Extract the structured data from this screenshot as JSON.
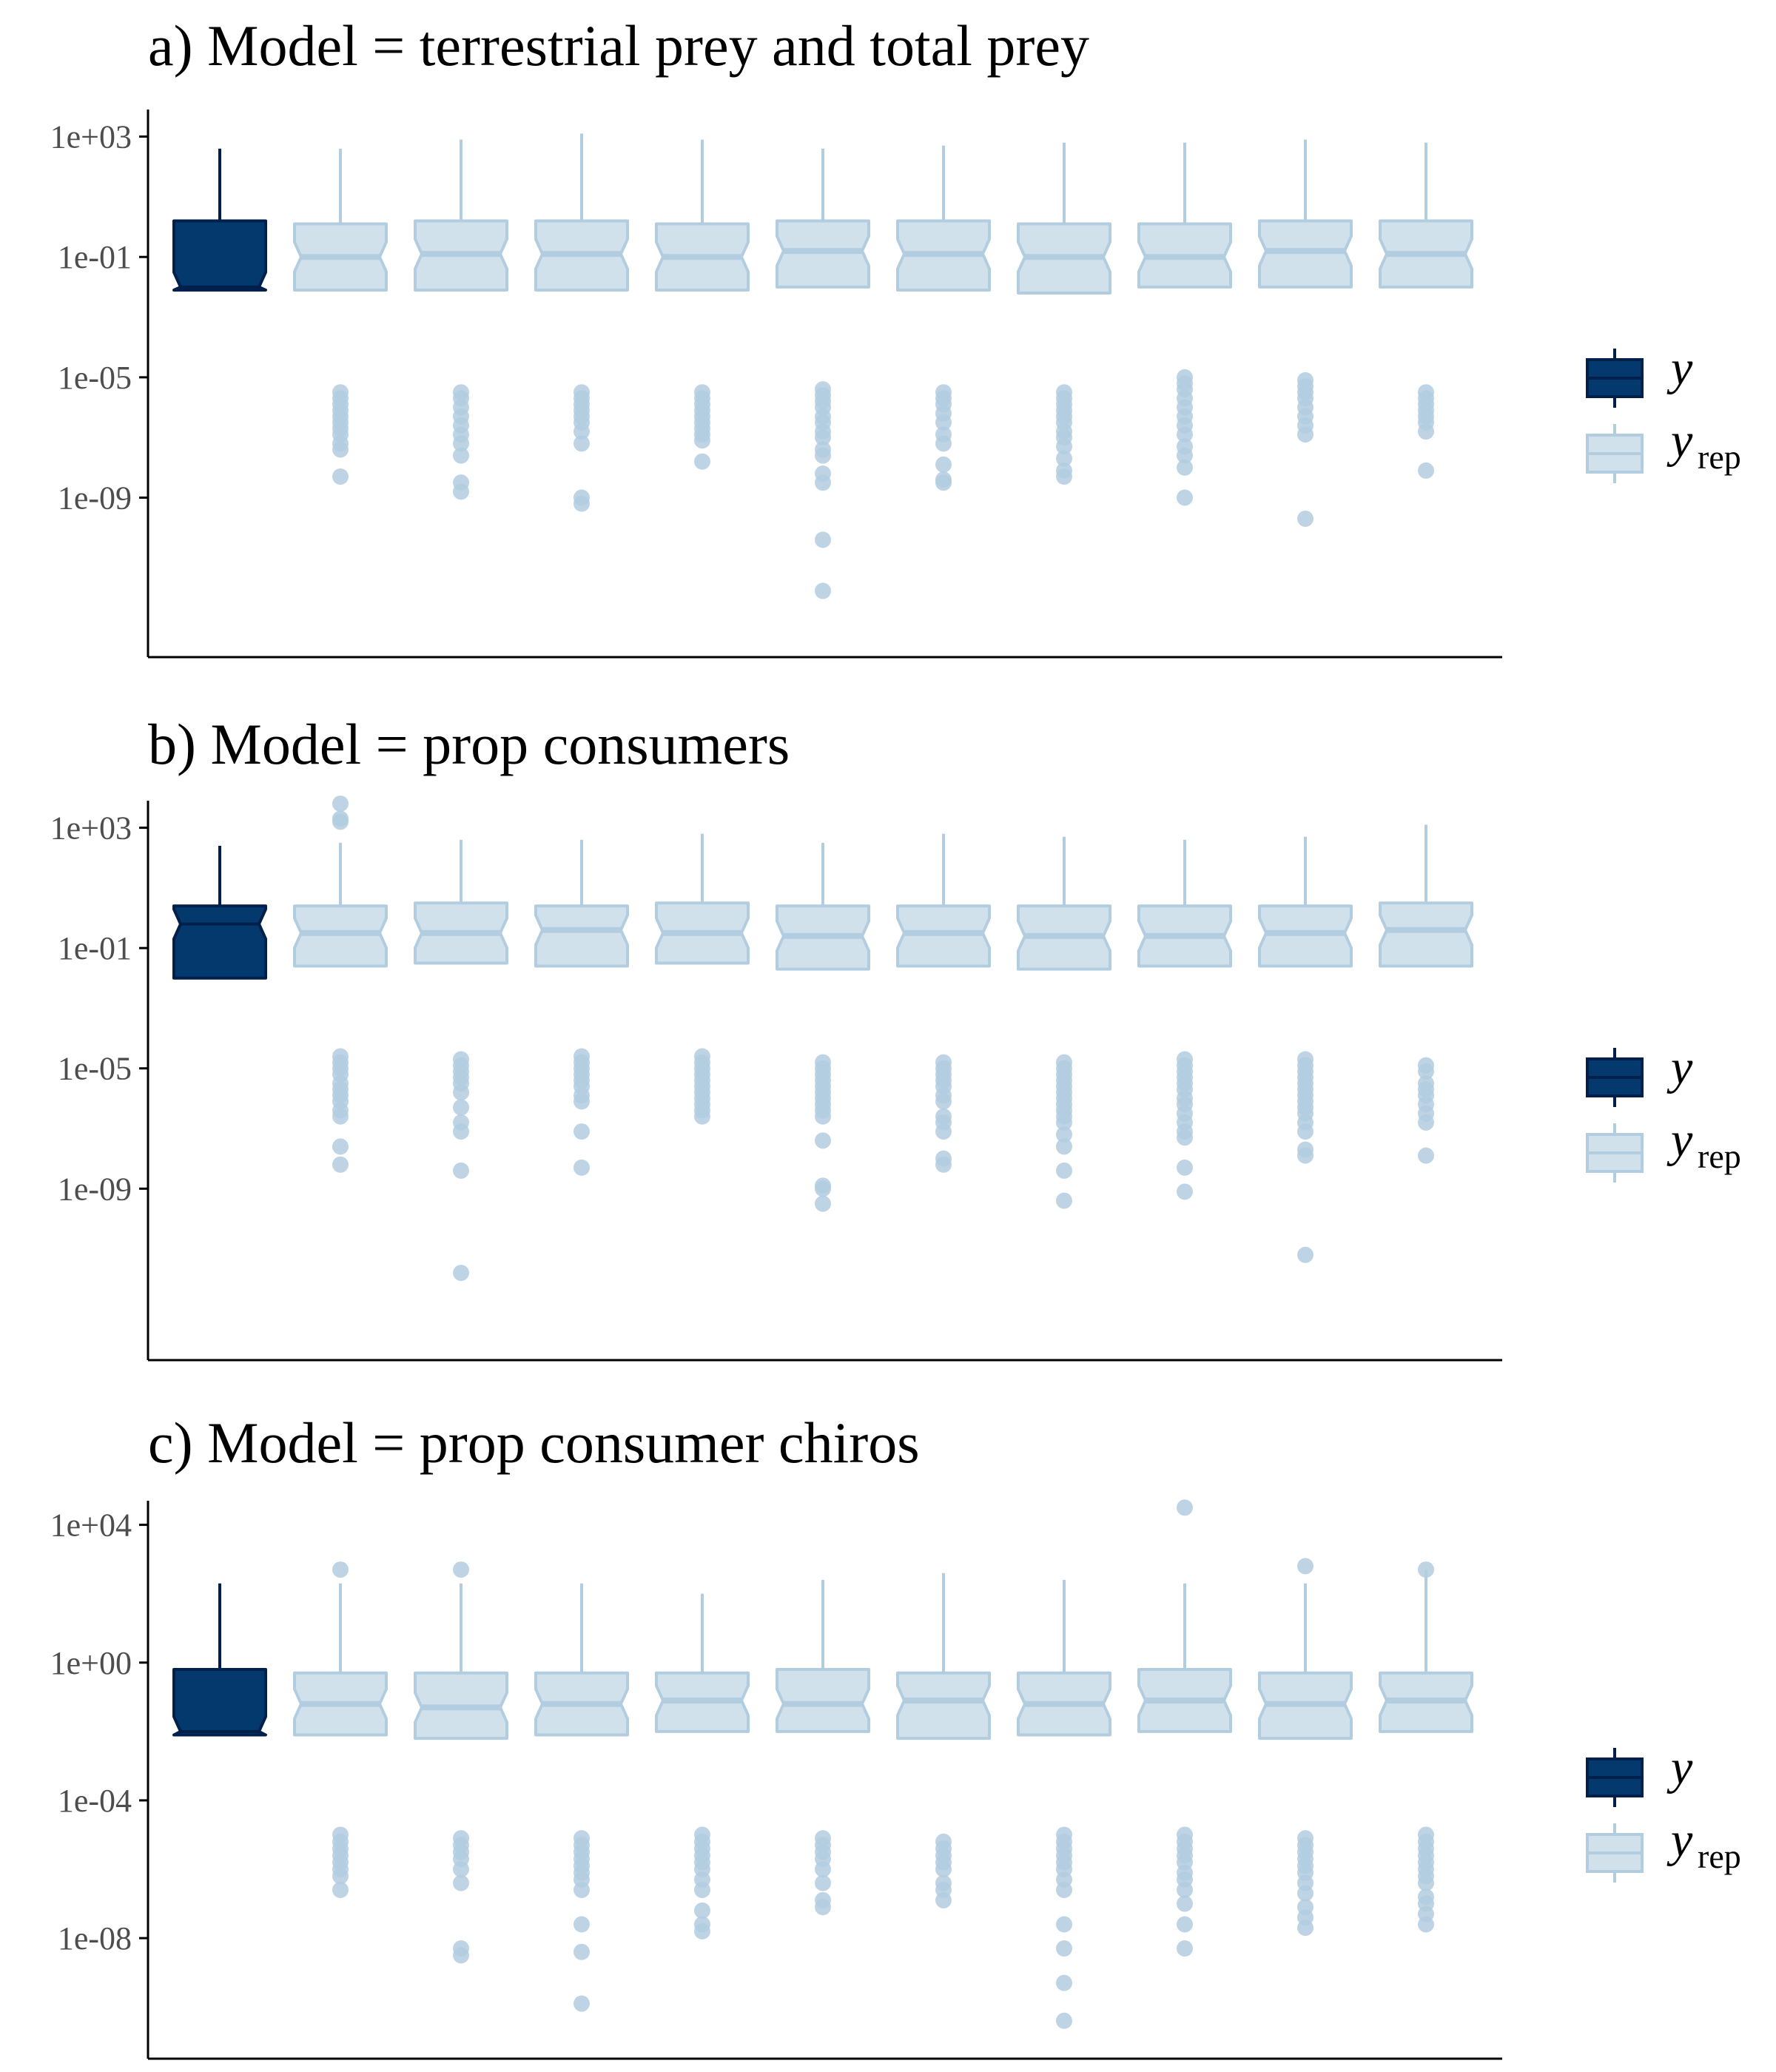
{
  "colors": {
    "y": "#03396c",
    "y_edge": "#011f4b",
    "yrep": "#d1e1ec",
    "yrep_edge": "#b3cde0",
    "axis": "#000000",
    "tick_text": "#4d4d4d"
  },
  "legend": {
    "y_label": "y",
    "yrep_label": "y",
    "yrep_subscript": "rep"
  },
  "chart_data": [
    {
      "type": "boxplot",
      "title": "a) Model = terrestrial prey and total prey",
      "y_scale": "log10",
      "ylim_log10": [
        -14.3,
        3.9
      ],
      "yticks": [
        {
          "label": "1e+03",
          "log10": 3
        },
        {
          "label": "1e-01",
          "log10": -1
        },
        {
          "label": "1e-05",
          "log10": -5
        },
        {
          "label": "1e-09",
          "log10": -9
        }
      ],
      "xlabel": "",
      "ylabel": "",
      "legend_position": "right",
      "boxes": [
        {
          "series": "y",
          "log10": {
            "whisker_low": -2.1,
            "q1": -2.1,
            "median": -2.0,
            "q3": 0.2,
            "whisker_high": 2.6
          },
          "outliers_log10": []
        },
        {
          "series": "yrep",
          "log10": {
            "whisker_low": -2.1,
            "q1": -2.1,
            "median": -1.0,
            "q3": 0.1,
            "whisker_high": 2.6
          },
          "outliers_log10": [
            -5.5,
            -5.7,
            -5.9,
            -6.1,
            -6.3,
            -6.5,
            -6.7,
            -6.9,
            -7.2,
            -7.4,
            -8.3
          ]
        },
        {
          "series": "yrep",
          "log10": {
            "whisker_low": -2.1,
            "q1": -2.1,
            "median": -0.9,
            "q3": 0.2,
            "whisker_high": 2.9
          },
          "outliers_log10": [
            -5.5,
            -5.7,
            -6.0,
            -6.3,
            -6.6,
            -6.9,
            -7.2,
            -7.6,
            -8.5,
            -8.8
          ]
        },
        {
          "series": "yrep",
          "log10": {
            "whisker_low": -2.1,
            "q1": -2.1,
            "median": -0.9,
            "q3": 0.2,
            "whisker_high": 3.1
          },
          "outliers_log10": [
            -5.5,
            -5.7,
            -5.9,
            -6.1,
            -6.3,
            -6.5,
            -6.8,
            -7.2,
            -9.0,
            -9.2
          ]
        },
        {
          "series": "yrep",
          "log10": {
            "whisker_low": -2.1,
            "q1": -2.1,
            "median": -1.0,
            "q3": 0.1,
            "whisker_high": 2.9
          },
          "outliers_log10": [
            -5.5,
            -5.7,
            -5.9,
            -6.1,
            -6.3,
            -6.5,
            -6.7,
            -6.9,
            -7.1,
            -7.8
          ]
        },
        {
          "series": "yrep",
          "log10": {
            "whisker_low": -2.0,
            "q1": -2.0,
            "median": -0.8,
            "q3": 0.2,
            "whisker_high": 2.6
          },
          "outliers_log10": [
            -5.4,
            -5.6,
            -5.8,
            -6.0,
            -6.3,
            -6.5,
            -6.8,
            -7.0,
            -7.4,
            -7.6,
            -8.2,
            -8.5,
            -10.4,
            -12.1
          ]
        },
        {
          "series": "yrep",
          "log10": {
            "whisker_low": -2.1,
            "q1": -2.1,
            "median": -0.9,
            "q3": 0.2,
            "whisker_high": 2.7
          },
          "outliers_log10": [
            -5.5,
            -5.7,
            -5.9,
            -6.2,
            -6.5,
            -6.9,
            -7.2,
            -7.9,
            -8.4,
            -8.5
          ]
        },
        {
          "series": "yrep",
          "log10": {
            "whisker_low": -2.2,
            "q1": -2.2,
            "median": -1.0,
            "q3": 0.1,
            "whisker_high": 2.8
          },
          "outliers_log10": [
            -5.5,
            -5.7,
            -5.9,
            -6.1,
            -6.3,
            -6.5,
            -6.8,
            -7.0,
            -7.3,
            -7.7,
            -8.1,
            -8.3
          ]
        },
        {
          "series": "yrep",
          "log10": {
            "whisker_low": -2.0,
            "q1": -2.0,
            "median": -1.0,
            "q3": 0.1,
            "whisker_high": 2.8
          },
          "outliers_log10": [
            -5.0,
            -5.2,
            -5.4,
            -5.7,
            -6.0,
            -6.3,
            -6.6,
            -6.9,
            -7.3,
            -7.6,
            -8.0,
            -9.0
          ]
        },
        {
          "series": "yrep",
          "log10": {
            "whisker_low": -2.0,
            "q1": -2.0,
            "median": -0.8,
            "q3": 0.2,
            "whisker_high": 2.9
          },
          "outliers_log10": [
            -5.1,
            -5.3,
            -5.5,
            -5.7,
            -6.0,
            -6.3,
            -6.6,
            -6.9,
            -9.7
          ]
        },
        {
          "series": "yrep",
          "log10": {
            "whisker_low": -2.0,
            "q1": -2.0,
            "median": -0.9,
            "q3": 0.2,
            "whisker_high": 2.8
          },
          "outliers_log10": [
            -5.5,
            -5.7,
            -5.9,
            -6.1,
            -6.3,
            -6.5,
            -6.8,
            -8.1
          ]
        }
      ]
    },
    {
      "type": "boxplot",
      "title": "b) Model = prop consumers",
      "y_scale": "log10",
      "ylim_log10": [
        -14.7,
        3.9
      ],
      "yticks": [
        {
          "label": "1e+03",
          "log10": 3
        },
        {
          "label": "1e-01",
          "log10": -1
        },
        {
          "label": "1e-05",
          "log10": -5
        },
        {
          "label": "1e-09",
          "log10": -9
        }
      ],
      "xlabel": "",
      "ylabel": "",
      "legend_position": "right",
      "boxes": [
        {
          "series": "y",
          "log10": {
            "whisker_low": -2.0,
            "q1": -2.0,
            "median": -0.2,
            "q3": 0.4,
            "whisker_high": 2.4
          },
          "outliers_log10": []
        },
        {
          "series": "yrep",
          "log10": {
            "whisker_low": -1.6,
            "q1": -1.6,
            "median": -0.5,
            "q3": 0.4,
            "whisker_high": 2.5
          },
          "outliers_log10": [
            3.8,
            3.3,
            3.2,
            -4.6,
            -4.8,
            -5.0,
            -5.2,
            -5.5,
            -5.7,
            -5.9,
            -6.1,
            -6.4,
            -6.6,
            -7.6,
            -8.2
          ]
        },
        {
          "series": "yrep",
          "log10": {
            "whisker_low": -1.5,
            "q1": -1.5,
            "median": -0.5,
            "q3": 0.5,
            "whisker_high": 2.6
          },
          "outliers_log10": [
            -4.7,
            -4.9,
            -5.1,
            -5.3,
            -5.5,
            -5.8,
            -6.3,
            -6.8,
            -7.1,
            -8.4,
            -11.8
          ]
        },
        {
          "series": "yrep",
          "log10": {
            "whisker_low": -1.6,
            "q1": -1.6,
            "median": -0.4,
            "q3": 0.4,
            "whisker_high": 2.6
          },
          "outliers_log10": [
            -4.6,
            -4.8,
            -5.0,
            -5.2,
            -5.4,
            -5.6,
            -5.9,
            -6.1,
            -7.1,
            -8.3
          ]
        },
        {
          "series": "yrep",
          "log10": {
            "whisker_low": -1.5,
            "q1": -1.5,
            "median": -0.5,
            "q3": 0.5,
            "whisker_high": 2.8
          },
          "outliers_log10": [
            -4.6,
            -4.8,
            -5.0,
            -5.2,
            -5.4,
            -5.6,
            -5.8,
            -6.0,
            -6.2,
            -6.4,
            -6.6
          ]
        },
        {
          "series": "yrep",
          "log10": {
            "whisker_low": -1.7,
            "q1": -1.7,
            "median": -0.6,
            "q3": 0.4,
            "whisker_high": 2.5
          },
          "outliers_log10": [
            -4.8,
            -5.0,
            -5.2,
            -5.4,
            -5.6,
            -5.8,
            -6.0,
            -6.2,
            -6.4,
            -6.6,
            -7.4,
            -8.9,
            -9.0,
            -9.5
          ]
        },
        {
          "series": "yrep",
          "log10": {
            "whisker_low": -1.6,
            "q1": -1.6,
            "median": -0.5,
            "q3": 0.4,
            "whisker_high": 2.8
          },
          "outliers_log10": [
            -4.8,
            -5.0,
            -5.2,
            -5.4,
            -5.6,
            -5.9,
            -6.1,
            -6.6,
            -6.8,
            -7.1,
            -8.0,
            -8.2
          ]
        },
        {
          "series": "yrep",
          "log10": {
            "whisker_low": -1.7,
            "q1": -1.7,
            "median": -0.6,
            "q3": 0.4,
            "whisker_high": 2.7
          },
          "outliers_log10": [
            -4.8,
            -5.0,
            -5.2,
            -5.4,
            -5.6,
            -5.8,
            -6.0,
            -6.2,
            -6.4,
            -6.6,
            -6.8,
            -7.2,
            -7.6,
            -8.4,
            -9.4
          ]
        },
        {
          "series": "yrep",
          "log10": {
            "whisker_low": -1.6,
            "q1": -1.6,
            "median": -0.6,
            "q3": 0.4,
            "whisker_high": 2.6
          },
          "outliers_log10": [
            -4.7,
            -4.9,
            -5.1,
            -5.3,
            -5.5,
            -5.7,
            -6.0,
            -6.2,
            -6.5,
            -6.8,
            -7.1,
            -7.3,
            -8.3,
            -9.1
          ]
        },
        {
          "series": "yrep",
          "log10": {
            "whisker_low": -1.6,
            "q1": -1.6,
            "median": -0.5,
            "q3": 0.4,
            "whisker_high": 2.7
          },
          "outliers_log10": [
            -4.7,
            -4.9,
            -5.1,
            -5.3,
            -5.5,
            -5.7,
            -5.9,
            -6.1,
            -6.3,
            -6.5,
            -6.8,
            -7.1,
            -7.7,
            -7.9,
            -11.2
          ]
        },
        {
          "series": "yrep",
          "log10": {
            "whisker_low": -1.6,
            "q1": -1.6,
            "median": -0.4,
            "q3": 0.5,
            "whisker_high": 3.1
          },
          "outliers_log10": [
            -4.9,
            -5.1,
            -5.5,
            -5.7,
            -5.9,
            -6.2,
            -6.5,
            -6.8,
            -7.9
          ]
        }
      ]
    },
    {
      "type": "boxplot",
      "title": "c) Model = prop consumer chiros",
      "y_scale": "log10",
      "ylim_log10": [
        -11.5,
        4.7
      ],
      "yticks": [
        {
          "label": "1e+04",
          "log10": 4
        },
        {
          "label": "1e+00",
          "log10": 0
        },
        {
          "label": "1e-04",
          "log10": -4
        },
        {
          "label": "1e-08",
          "log10": -8
        }
      ],
      "xlabel": "",
      "ylabel": "",
      "legend_position": "right",
      "boxes": [
        {
          "series": "y",
          "log10": {
            "whisker_low": -2.1,
            "q1": -2.1,
            "median": -2.0,
            "q3": -0.2,
            "whisker_high": 2.3
          },
          "outliers_log10": []
        },
        {
          "series": "yrep",
          "log10": {
            "whisker_low": -2.1,
            "q1": -2.1,
            "median": -1.2,
            "q3": -0.3,
            "whisker_high": 2.3
          },
          "outliers_log10": [
            2.7,
            -5.0,
            -5.2,
            -5.4,
            -5.6,
            -5.8,
            -6.0,
            -6.2,
            -6.6
          ]
        },
        {
          "series": "yrep",
          "log10": {
            "whisker_low": -2.2,
            "q1": -2.2,
            "median": -1.3,
            "q3": -0.3,
            "whisker_high": 2.3
          },
          "outliers_log10": [
            2.7,
            -5.1,
            -5.3,
            -5.5,
            -5.7,
            -6.0,
            -6.4,
            -8.3,
            -8.5
          ]
        },
        {
          "series": "yrep",
          "log10": {
            "whisker_low": -2.1,
            "q1": -2.1,
            "median": -1.2,
            "q3": -0.3,
            "whisker_high": 2.3
          },
          "outliers_log10": [
            -5.1,
            -5.3,
            -5.5,
            -5.7,
            -5.9,
            -6.1,
            -6.3,
            -6.6,
            -7.6,
            -8.4,
            -9.9
          ]
        },
        {
          "series": "yrep",
          "log10": {
            "whisker_low": -2.0,
            "q1": -2.0,
            "median": -1.1,
            "q3": -0.3,
            "whisker_high": 2.0
          },
          "outliers_log10": [
            -5.0,
            -5.2,
            -5.4,
            -5.6,
            -5.8,
            -6.0,
            -6.3,
            -6.6,
            -7.2,
            -7.6,
            -7.8
          ]
        },
        {
          "series": "yrep",
          "log10": {
            "whisker_low": -2.0,
            "q1": -2.0,
            "median": -1.2,
            "q3": -0.2,
            "whisker_high": 2.4
          },
          "outliers_log10": [
            -5.1,
            -5.3,
            -5.5,
            -5.7,
            -6.0,
            -6.4,
            -6.9,
            -7.1
          ]
        },
        {
          "series": "yrep",
          "log10": {
            "whisker_low": -2.2,
            "q1": -2.2,
            "median": -1.1,
            "q3": -0.3,
            "whisker_high": 2.6
          },
          "outliers_log10": [
            -5.2,
            -5.4,
            -5.6,
            -5.8,
            -6.0,
            -6.4,
            -6.6,
            -6.9
          ]
        },
        {
          "series": "yrep",
          "log10": {
            "whisker_low": -2.1,
            "q1": -2.1,
            "median": -1.2,
            "q3": -0.3,
            "whisker_high": 2.4
          },
          "outliers_log10": [
            -5.0,
            -5.2,
            -5.4,
            -5.6,
            -5.8,
            -6.0,
            -6.3,
            -6.6,
            -7.6,
            -8.3,
            -9.3,
            -10.4
          ]
        },
        {
          "series": "yrep",
          "log10": {
            "whisker_low": -2.0,
            "q1": -2.0,
            "median": -1.1,
            "q3": -0.2,
            "whisker_high": 2.3
          },
          "outliers_log10": [
            4.5,
            -5.0,
            -5.2,
            -5.4,
            -5.6,
            -5.8,
            -6.1,
            -6.3,
            -6.6,
            -7.0,
            -7.6,
            -8.3
          ]
        },
        {
          "series": "yrep",
          "log10": {
            "whisker_low": -2.2,
            "q1": -2.2,
            "median": -1.2,
            "q3": -0.3,
            "whisker_high": 2.3
          },
          "outliers_log10": [
            2.8,
            -5.1,
            -5.3,
            -5.5,
            -5.7,
            -5.9,
            -6.1,
            -6.4,
            -6.7,
            -7.1,
            -7.4,
            -7.7
          ]
        },
        {
          "series": "yrep",
          "log10": {
            "whisker_low": -2.0,
            "q1": -2.0,
            "median": -1.1,
            "q3": -0.3,
            "whisker_high": 2.7
          },
          "outliers_log10": [
            2.7,
            -5.0,
            -5.2,
            -5.4,
            -5.6,
            -5.8,
            -6.0,
            -6.2,
            -6.4,
            -6.8,
            -7.0,
            -7.3,
            -7.6
          ]
        }
      ]
    }
  ]
}
